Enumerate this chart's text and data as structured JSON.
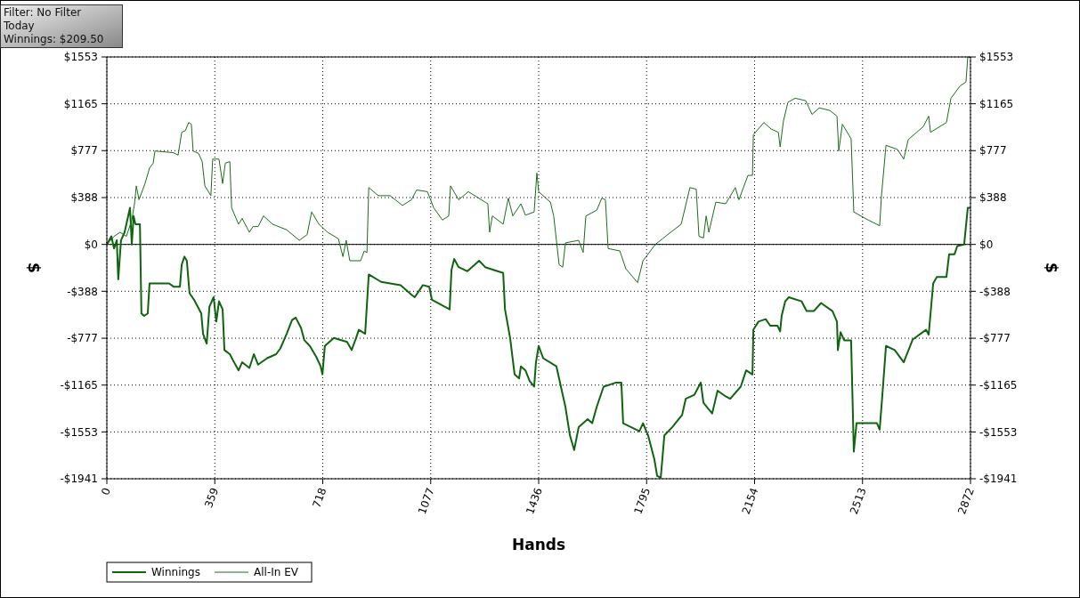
{
  "chart_data": {
    "type": "line",
    "xlabel": "Hands",
    "ylabel": "$",
    "y2label": "$",
    "annotations": [
      "Filter: No Filter",
      "Today",
      "Winnings: $209.50"
    ],
    "xlim": [
      0,
      2872
    ],
    "xticks": [
      0,
      359,
      718,
      1077,
      1436,
      1795,
      2154,
      2513,
      2872
    ],
    "ylim": [
      -1941,
      1553
    ],
    "yticks": [
      {
        "value": -1941,
        "label": "-$1941"
      },
      {
        "value": -1553,
        "label": "-$1553"
      },
      {
        "value": -1165,
        "label": "-$1165"
      },
      {
        "value": -777,
        "label": "-$777"
      },
      {
        "value": -388,
        "label": "-$388"
      },
      {
        "value": 0,
        "label": "$0"
      },
      {
        "value": 388,
        "label": "$388"
      },
      {
        "value": 777,
        "label": "$777"
      },
      {
        "value": 1165,
        "label": "$1165"
      },
      {
        "value": 1553,
        "label": "$1553"
      }
    ],
    "y2lim": [
      -1941,
      1553
    ],
    "y2ticks": [
      {
        "value": -1941,
        "label": "-$1941"
      },
      {
        "value": -1553,
        "label": "-$1553"
      },
      {
        "value": -1165,
        "label": "-$1165"
      },
      {
        "value": -777,
        "label": "-$777"
      },
      {
        "value": -388,
        "label": "-$388"
      },
      {
        "value": 0,
        "label": "$0"
      },
      {
        "value": 388,
        "label": "$388"
      },
      {
        "value": 777,
        "label": "$777"
      },
      {
        "value": 1165,
        "label": "$1165"
      },
      {
        "value": 1553,
        "label": "$1553"
      }
    ],
    "grid": true,
    "legend": "bottom left",
    "line_style": "solid",
    "marker": "none",
    "ref_lines": [
      {
        "axis": "y",
        "value": 0,
        "color": "#000000"
      }
    ],
    "series": [
      {
        "name": "Winnings",
        "color": "#0f640f",
        "x": [
          0,
          15,
          24,
          33,
          38,
          47,
          59,
          77,
          83,
          89,
          95,
          110,
          115,
          124,
          136,
          142,
          207,
          222,
          243,
          249,
          258,
          266,
          275,
          290,
          314,
          320,
          332,
          341,
          355,
          364,
          373,
          385,
          391,
          409,
          423,
          438,
          450,
          474,
          489,
          503,
          533,
          563,
          577,
          598,
          616,
          628,
          646,
          657,
          675,
          696,
          711,
          717,
          725,
          755,
          799,
          814,
          829,
          838,
          859,
          871,
          912,
          977,
          1013,
          1024,
          1051,
          1072,
          1081,
          1140,
          1146,
          1155,
          1170,
          1199,
          1238,
          1258,
          1318,
          1324,
          1341,
          1356,
          1371,
          1377,
          1392,
          1406,
          1421,
          1427,
          1436,
          1451,
          1495,
          1510,
          1525,
          1540,
          1554,
          1569,
          1599,
          1614,
          1629,
          1652,
          1694,
          1711,
          1717,
          1771,
          1783,
          1800,
          1821,
          1830,
          1842,
          1854,
          1880,
          1913,
          1925,
          1954,
          1975,
          1984,
          2013,
          2031,
          2058,
          2073,
          2108,
          2126,
          2147,
          2150,
          2167,
          2191,
          2206,
          2230,
          2239,
          2244,
          2256,
          2268,
          2310,
          2327,
          2351,
          2375,
          2413,
          2428,
          2431,
          2440,
          2452,
          2475,
          2484,
          2493,
          2561,
          2570,
          2579,
          2591,
          2620,
          2650,
          2680,
          2724,
          2733,
          2748,
          2760,
          2792,
          2801,
          2819,
          2828,
          2851,
          2863,
          2872
        ],
        "values": [
          0,
          67,
          -34,
          34,
          -289,
          34,
          101,
          303,
          0,
          236,
          168,
          168,
          -572,
          -592,
          -572,
          -323,
          -323,
          -350,
          -350,
          -168,
          -101,
          -135,
          -404,
          -458,
          -572,
          -740,
          -821,
          -518,
          -437,
          -639,
          -471,
          -538,
          -875,
          -909,
          -976,
          -1043,
          -976,
          -1023,
          -909,
          -996,
          -942,
          -909,
          -861,
          -740,
          -626,
          -606,
          -693,
          -794,
          -841,
          -929,
          -1010,
          -1077,
          -841,
          -774,
          -808,
          -875,
          -774,
          -707,
          -740,
          -249,
          -310,
          -337,
          -417,
          -437,
          -337,
          -350,
          -458,
          -538,
          -215,
          -121,
          -188,
          -222,
          -135,
          -188,
          -236,
          -538,
          -774,
          -1077,
          -1110,
          -1010,
          -1043,
          -1131,
          -1178,
          -976,
          -841,
          -942,
          -1010,
          -1178,
          -1346,
          -1582,
          -1703,
          -1514,
          -1447,
          -1481,
          -1346,
          -1178,
          -1144,
          -1144,
          -1481,
          -1548,
          -1481,
          -1582,
          -1783,
          -1918,
          -1932,
          -1582,
          -1514,
          -1413,
          -1279,
          -1245,
          -1144,
          -1312,
          -1400,
          -1211,
          -1259,
          -1279,
          -1178,
          -1043,
          -1077,
          -707,
          -639,
          -619,
          -673,
          -673,
          -720,
          -592,
          -471,
          -437,
          -471,
          -552,
          -552,
          -485,
          -552,
          -639,
          -875,
          -727,
          -794,
          -794,
          -1716,
          -1481,
          -1481,
          -1534,
          -1245,
          -841,
          -875,
          -976,
          -787,
          -707,
          -747,
          -323,
          -269,
          -269,
          -81,
          -81,
          -13,
          0,
          303,
          303
        ]
      },
      {
        "name": "All-In EV",
        "color": "#1a6e1a",
        "x": [
          0,
          24,
          44,
          65,
          83,
          92,
          98,
          107,
          127,
          142,
          154,
          160,
          222,
          237,
          249,
          261,
          272,
          281,
          287,
          305,
          317,
          326,
          346,
          352,
          373,
          385,
          394,
          409,
          415,
          438,
          450,
          474,
          486,
          503,
          521,
          551,
          598,
          640,
          666,
          681,
          705,
          734,
          770,
          785,
          796,
          808,
          844,
          856,
          865,
          871,
          903,
          942,
          983,
          1013,
          1030,
          1066,
          1087,
          1116,
          1137,
          1143,
          1170,
          1202,
          1258,
          1267,
          1273,
          1282,
          1318,
          1335,
          1350,
          1377,
          1392,
          1421,
          1430,
          1436,
          1475,
          1486,
          1495,
          1504,
          1516,
          1525,
          1569,
          1584,
          1593,
          1629,
          1646,
          1658,
          1667,
          1706,
          1726,
          1765,
          1783,
          1824,
          1865,
          1910,
          1939,
          1960,
          1969,
          1984,
          1993,
          2002,
          2025,
          2058,
          2090,
          2102,
          2132,
          2147,
          2150,
          2185,
          2209,
          2233,
          2239,
          2250,
          2265,
          2289,
          2324,
          2345,
          2369,
          2404,
          2428,
          2434,
          2446,
          2475,
          2484,
          2532,
          2570,
          2576,
          2591,
          2629,
          2650,
          2665,
          2715,
          2733,
          2739,
          2792,
          2807,
          2837,
          2857,
          2863,
          2872
        ],
        "values": [
          0,
          67,
          101,
          67,
          202,
          337,
          485,
          370,
          505,
          633,
          673,
          774,
          760,
          740,
          929,
          942,
          1010,
          996,
          774,
          754,
          686,
          485,
          404,
          707,
          707,
          505,
          673,
          686,
          303,
          168,
          215,
          101,
          148,
          148,
          236,
          168,
          121,
          34,
          81,
          269,
          168,
          101,
          47,
          -101,
          34,
          -135,
          -135,
          -54,
          -67,
          471,
          404,
          404,
          323,
          370,
          451,
          437,
          303,
          202,
          236,
          485,
          370,
          437,
          350,
          337,
          101,
          236,
          168,
          384,
          236,
          337,
          242,
          269,
          592,
          437,
          350,
          236,
          34,
          -168,
          -188,
          13,
          34,
          -67,
          236,
          283,
          384,
          370,
          -34,
          -54,
          -202,
          -316,
          -135,
          0,
          81,
          168,
          471,
          458,
          67,
          54,
          236,
          101,
          350,
          337,
          471,
          370,
          572,
          572,
          909,
          1010,
          956,
          929,
          808,
          1023,
          1178,
          1211,
          1191,
          1077,
          1131,
          1110,
          1063,
          774,
          996,
          875,
          269,
          202,
          155,
          404,
          821,
          787,
          707,
          868,
          976,
          1063,
          929,
          1010,
          1211,
          1312,
          1346,
          1553,
          1547
        ]
      }
    ]
  }
}
